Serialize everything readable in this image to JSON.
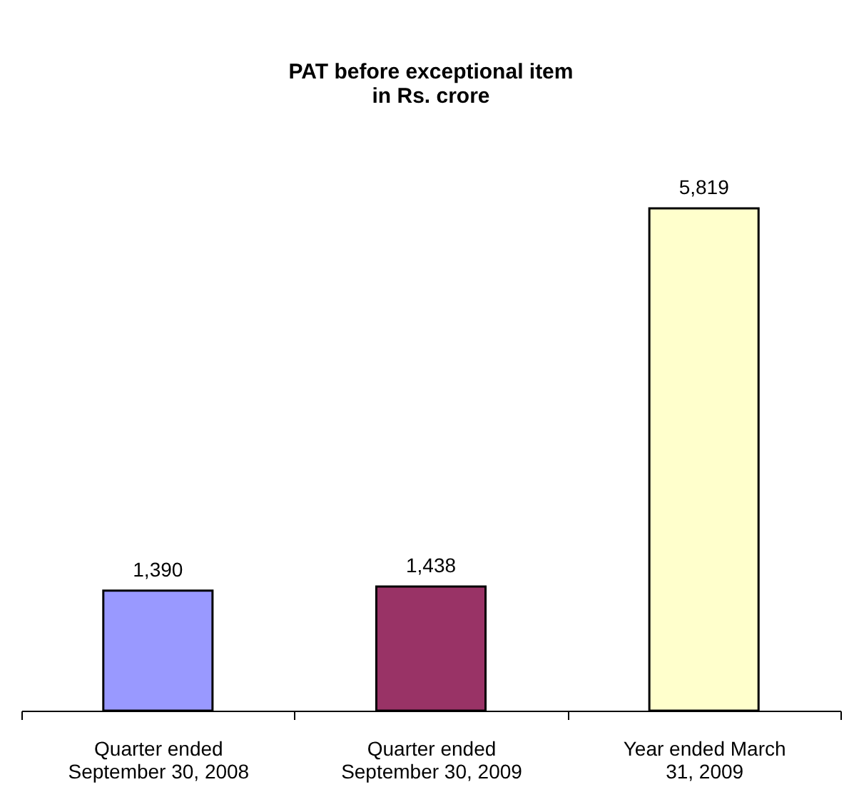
{
  "chart_data": {
    "type": "bar",
    "title": [
      "PAT before exceptional item",
      "in Rs. crore"
    ],
    "categories": [
      "Quarter ended\nSeptember 30, 2008",
      "Quarter ended\nSeptember 30, 2009",
      "Year ended March\n31, 2009"
    ],
    "values": [
      1390,
      1438,
      5819
    ],
    "colors": [
      "#9999ff",
      "#993366",
      "#ffffcc"
    ],
    "value_labels": [
      "1,390",
      "1,438",
      "5,819"
    ],
    "legend": false,
    "grid": false
  }
}
